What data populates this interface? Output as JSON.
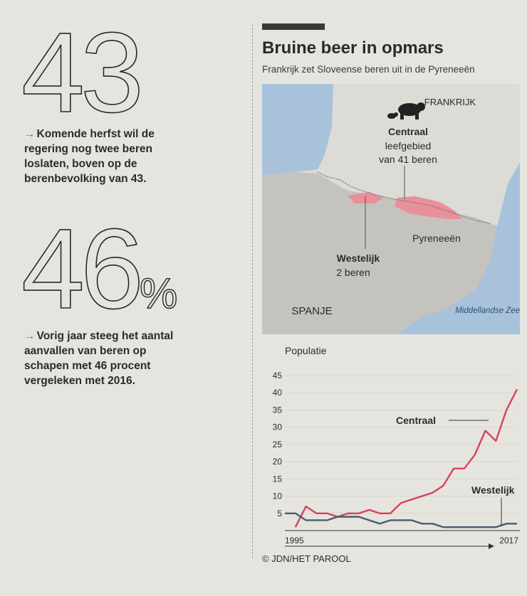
{
  "left": {
    "stat1": {
      "number": "43",
      "text": "Komende herfst wil de regering nog twee beren loslaten, boven op de berenbevolking van 43."
    },
    "stat2": {
      "number": "46",
      "suffix": "%",
      "text": "Vorig jaar steeg het aantal aanvallen van beren op schapen met 46 procent vergeleken met 2016."
    },
    "arrow": "→"
  },
  "graphic": {
    "title": "Bruine beer in opmars",
    "subtitle": "Frankrijk zet Sloveense beren uit in de Pyreneeën",
    "credit": "© JDN/HET PAROOL"
  },
  "map": {
    "labels": {
      "frankrijk": "FRANKRIJK",
      "spanje": "SPANJE",
      "sea": "Middellandse Zee",
      "pyreneeen": "Pyreneeën",
      "centraal_title": "Centraal",
      "centraal_line1": "leefgebied",
      "centraal_line2": "van 41 beren",
      "westelijk_title": "Westelijk",
      "westelijk_sub": "2 beren"
    },
    "colors": {
      "water": "#a9c2dc",
      "land": "#c5c3be",
      "habitat": "#e8909a"
    }
  },
  "chart_data": {
    "type": "line",
    "title": "Populatie",
    "ylim": [
      0,
      45
    ],
    "yticks": [
      "5",
      "10",
      "15",
      "20",
      "25",
      "30",
      "35",
      "40",
      "45"
    ],
    "x_start_label": "1995",
    "x_end_label": "2017",
    "x": [
      1995,
      1996,
      1997,
      1998,
      1999,
      2000,
      2001,
      2002,
      2003,
      2004,
      2005,
      2006,
      2007,
      2008,
      2009,
      2010,
      2011,
      2012,
      2013,
      2014,
      2015,
      2016,
      2017
    ],
    "series": [
      {
        "name": "Centraal",
        "color": "#d9415a",
        "values": [
          null,
          1,
          7,
          5,
          5,
          4,
          5,
          5,
          6,
          5,
          5,
          8,
          9,
          10,
          11,
          13,
          18,
          18,
          22,
          29,
          26,
          35,
          41
        ]
      },
      {
        "name": "Westelijk",
        "color": "#4a5d6e",
        "values": [
          5,
          5,
          3,
          3,
          3,
          4,
          4,
          4,
          3,
          2,
          3,
          3,
          3,
          2,
          2,
          1,
          1,
          1,
          1,
          1,
          1,
          2,
          2
        ]
      }
    ]
  }
}
